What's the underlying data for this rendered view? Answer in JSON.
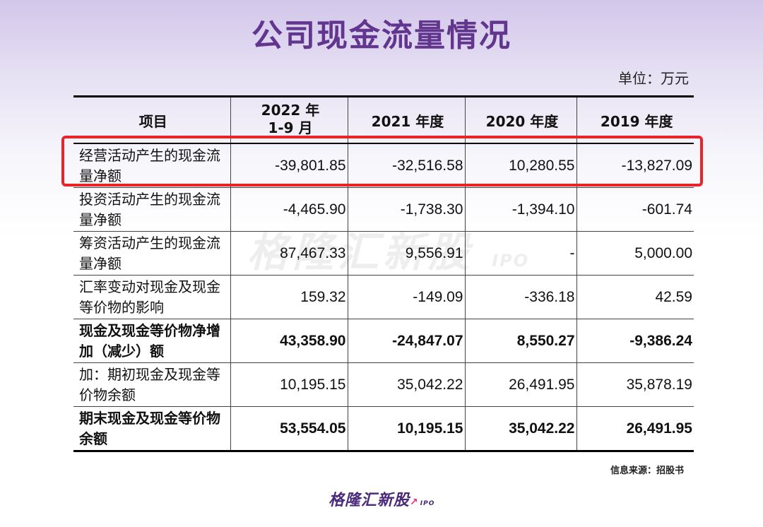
{
  "title": "公司现金流量情况",
  "unit": "单位：万元",
  "table": {
    "headers": [
      "项目",
      "2022 年\n1-9 月",
      "2021 年度",
      "2020 年度",
      "2019 年度"
    ],
    "rows": [
      {
        "label": "经营活动产生的现金流量净额",
        "values": [
          "-39,801.85",
          "-32,516.58",
          "10,280.55",
          "-13,827.09"
        ],
        "bold": false
      },
      {
        "label": "投资活动产生的现金流量净额",
        "values": [
          "-4,465.90",
          "-1,738.30",
          "-1,394.10",
          "-601.74"
        ],
        "bold": false
      },
      {
        "label": "筹资活动产生的现金流量净额",
        "values": [
          "87,467.33",
          "9,556.91",
          "-",
          "5,000.00"
        ],
        "bold": false
      },
      {
        "label": "汇率变动对现金及现金等价物的影响",
        "values": [
          "159.32",
          "-149.09",
          "-336.18",
          "42.59"
        ],
        "bold": false
      },
      {
        "label": "现金及现金等价物净增加（减少）额",
        "values": [
          "43,358.90",
          "-24,847.07",
          "8,550.27",
          "-9,386.24"
        ],
        "bold": true
      },
      {
        "label": "加：期初现金及现金等价物余额",
        "values": [
          "10,195.15",
          "35,042.22",
          "26,491.95",
          "35,878.19"
        ],
        "bold": false
      },
      {
        "label": "期末现金及现金等价物余额",
        "values": [
          "53,554.05",
          "10,195.15",
          "35,042.22",
          "26,491.95"
        ],
        "bold": true
      }
    ]
  },
  "source": "信息来源：招股书",
  "watermark": {
    "text": "格隆汇新股",
    "suffix": "IPO"
  },
  "logo": {
    "text": "格隆汇新股",
    "suffix": "IPO",
    "arrow": "↗"
  },
  "colors": {
    "title": "#62358e",
    "highlight": "#e8232a",
    "logo": "#4a2a7a"
  }
}
